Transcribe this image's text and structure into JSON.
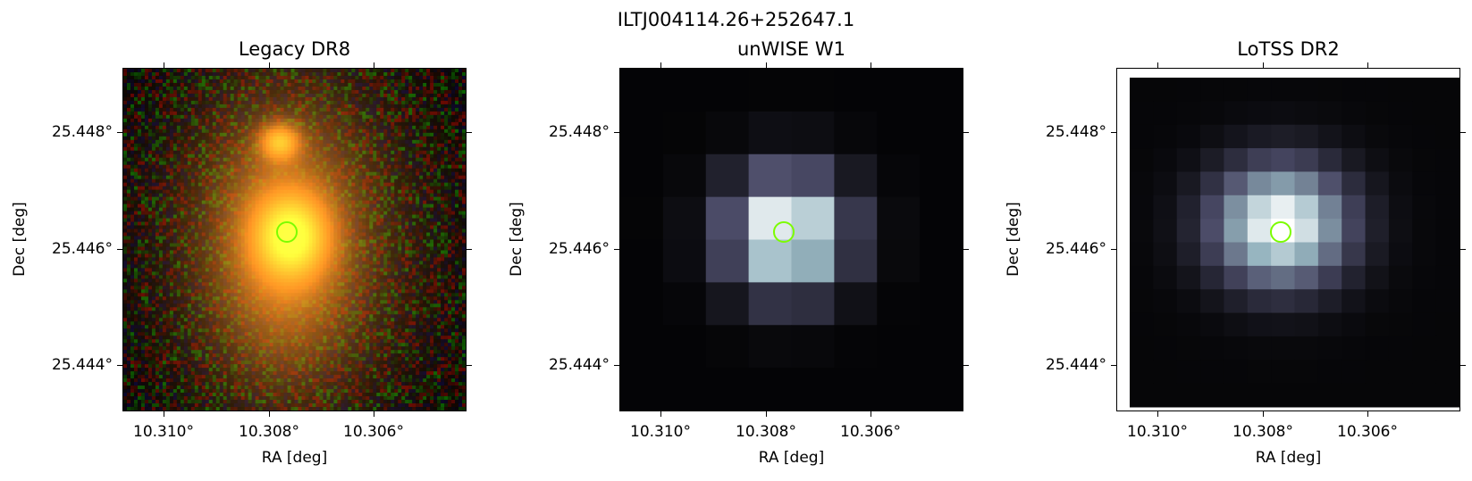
{
  "figure_title": "ILTJ004114.26+252647.1",
  "panels": [
    {
      "title": "Legacy DR8",
      "xlabel": "RA [deg]",
      "ylabel": "Dec [deg]",
      "xticks": [
        "10.310°",
        "10.308°",
        "10.306°"
      ],
      "yticks": [
        "25.448°",
        "25.446°",
        "25.444°"
      ],
      "image": "rgb-optical",
      "marker": "circle",
      "marker_color": "#7cfc00"
    },
    {
      "title": "unWISE W1",
      "xlabel": "RA [deg]",
      "ylabel": "Dec [deg]",
      "xticks": [
        "10.310°",
        "10.308°",
        "10.306°"
      ],
      "yticks": [
        "25.448°",
        "25.446°",
        "25.444°"
      ],
      "image": "grayscale-bone",
      "marker": "circle",
      "marker_color": "#7cfc00"
    },
    {
      "title": "LoTSS DR2",
      "xlabel": "RA [deg]",
      "ylabel": "Dec [deg]",
      "xticks": [
        "10.310°",
        "10.308°",
        "10.306°"
      ],
      "yticks": [
        "25.448°",
        "25.446°",
        "25.444°"
      ],
      "image": "grayscale-bone",
      "marker": "circle",
      "marker_color": "#7cfc00"
    }
  ]
}
